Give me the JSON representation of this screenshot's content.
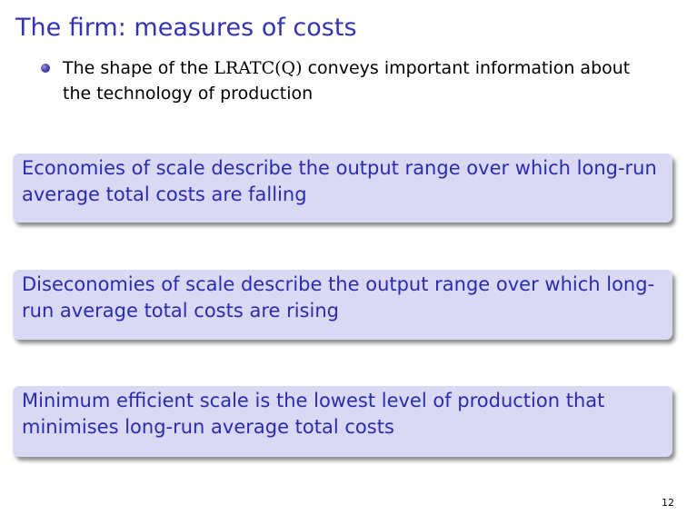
{
  "title": "The firm: measures of costs",
  "bullet": {
    "text_before": "The shape of the ",
    "math": "LRATC(Q)",
    "text_after": " conveys important information about the technology of production"
  },
  "blocks": [
    {
      "text": "Economies of scale describe the output range over which long-run average total costs are falling"
    },
    {
      "text": "Diseconomies of scale describe the output range over which long-run average total costs are rising"
    },
    {
      "text": "Minimum efficient scale is the lowest level of production that minimises long-run average total costs"
    }
  ],
  "page_number": "12",
  "colors": {
    "title": "#3333b3",
    "block_background": "#d9d9f3",
    "block_text": "#2b2bb0",
    "bullet": "#4a4ab6"
  }
}
